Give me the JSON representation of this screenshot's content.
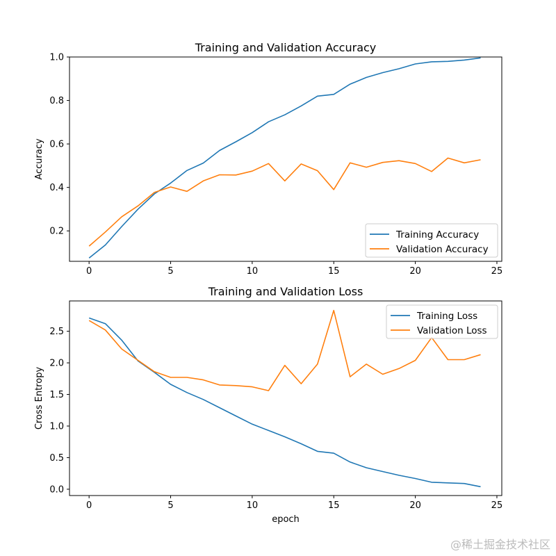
{
  "chart_data": [
    {
      "type": "line",
      "title": "Training and Validation Accuracy",
      "xlabel": "",
      "ylabel": "Accuracy",
      "xlim": [
        -1.2,
        25.3
      ],
      "ylim": [
        0.06,
        1.0
      ],
      "xticks": [
        0,
        5,
        10,
        15,
        20,
        25
      ],
      "yticks": [
        0.2,
        0.4,
        0.6,
        0.8,
        1.0
      ],
      "ytick_labels": [
        "0.2",
        "0.4",
        "0.6",
        "0.8",
        "1.0"
      ],
      "legend_position": "lower-right",
      "x": [
        0,
        1,
        2,
        3,
        4,
        5,
        6,
        7,
        8,
        9,
        10,
        11,
        12,
        13,
        14,
        15,
        16,
        17,
        18,
        19,
        20,
        21,
        22,
        23,
        24
      ],
      "series": [
        {
          "name": "Training Accuracy",
          "color": "#1f77b4",
          "values": [
            0.075,
            0.135,
            0.22,
            0.3,
            0.37,
            0.42,
            0.478,
            0.512,
            0.57,
            0.61,
            0.652,
            0.702,
            0.734,
            0.775,
            0.82,
            0.828,
            0.875,
            0.906,
            0.928,
            0.946,
            0.968,
            0.978,
            0.98,
            0.986,
            0.996
          ]
        },
        {
          "name": "Validation Accuracy",
          "color": "#ff7f0e",
          "values": [
            0.13,
            0.195,
            0.265,
            0.315,
            0.377,
            0.402,
            0.382,
            0.43,
            0.458,
            0.457,
            0.475,
            0.51,
            0.43,
            0.508,
            0.477,
            0.39,
            0.513,
            0.493,
            0.515,
            0.523,
            0.51,
            0.473,
            0.535,
            0.513,
            0.527
          ]
        }
      ]
    },
    {
      "type": "line",
      "title": "Training and Validation Loss",
      "xlabel": "epoch",
      "ylabel": "Cross Entropy",
      "xlim": [
        -1.2,
        25.3
      ],
      "ylim": [
        -0.1,
        2.98
      ],
      "xticks": [
        0,
        5,
        10,
        15,
        20,
        25
      ],
      "yticks": [
        0.0,
        0.5,
        1.0,
        1.5,
        2.0,
        2.5
      ],
      "ytick_labels": [
        "0.0",
        "0.5",
        "1.0",
        "1.5",
        "2.0",
        "2.5"
      ],
      "legend_position": "upper-right",
      "x": [
        0,
        1,
        2,
        3,
        4,
        5,
        6,
        7,
        8,
        9,
        10,
        11,
        12,
        13,
        14,
        15,
        16,
        17,
        18,
        19,
        20,
        21,
        22,
        23,
        24
      ],
      "series": [
        {
          "name": "Training Loss",
          "color": "#1f77b4",
          "values": [
            2.71,
            2.62,
            2.36,
            2.03,
            1.85,
            1.66,
            1.53,
            1.42,
            1.29,
            1.16,
            1.03,
            0.93,
            0.83,
            0.72,
            0.6,
            0.57,
            0.43,
            0.34,
            0.28,
            0.22,
            0.17,
            0.11,
            0.1,
            0.09,
            0.04
          ]
        },
        {
          "name": "Validation Loss",
          "color": "#ff7f0e",
          "values": [
            2.67,
            2.52,
            2.22,
            2.04,
            1.86,
            1.77,
            1.77,
            1.73,
            1.65,
            1.64,
            1.62,
            1.56,
            1.96,
            1.67,
            1.98,
            2.83,
            1.78,
            1.98,
            1.82,
            1.91,
            2.04,
            2.4,
            2.05,
            2.05,
            2.13
          ]
        }
      ]
    }
  ],
  "watermark": "@稀土掘金技术社区"
}
